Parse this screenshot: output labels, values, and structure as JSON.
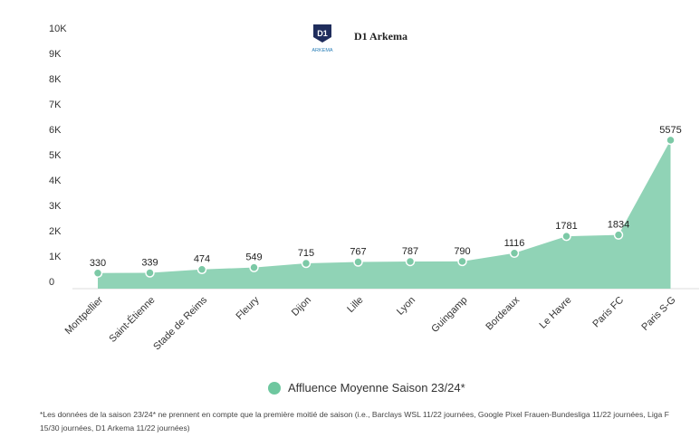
{
  "chart_data": {
    "type": "area",
    "title": "D1 Arkema",
    "logo": {
      "main": "D1",
      "sub": "ARKEMA"
    },
    "categories": [
      "Montpellier",
      "Saint-Étienne",
      "Stade de Reims",
      "Fleury",
      "Dijon",
      "Lille",
      "Lyon",
      "Guingamp",
      "Bordeaux",
      "Le Havre",
      "Paris FC",
      "Paris S-G"
    ],
    "series": [
      {
        "name": "Affluence Moyenne Saison 23/24*",
        "values": [
          330,
          339,
          474,
          549,
          715,
          767,
          787,
          790,
          1116,
          1781,
          1834,
          5575
        ]
      }
    ],
    "ylim": [
      0,
      10000
    ],
    "yticks": [
      0,
      1000,
      2000,
      3000,
      4000,
      5000,
      6000,
      7000,
      8000,
      9000,
      10000
    ],
    "ytick_labels": [
      "0",
      "1K",
      "2K",
      "3K",
      "4K",
      "5K",
      "6K",
      "7K",
      "8K",
      "9K",
      "10K"
    ],
    "xlabel": "",
    "ylabel": "",
    "grid": false,
    "legend_position": "bottom",
    "colors": {
      "area": "#90d3b6",
      "point": "#7cc9a6",
      "legend": "#6ec79f"
    },
    "footnote": "*Les données de la saison 23/24* ne prennent en compte que la première moitié de saison (i.e., Barclays WSL 11/22 journées, Google Pixel Frauen-Bundesliga 11/22 journées, Liga F 15/30 journées, D1 Arkema 11/22 journées)"
  }
}
